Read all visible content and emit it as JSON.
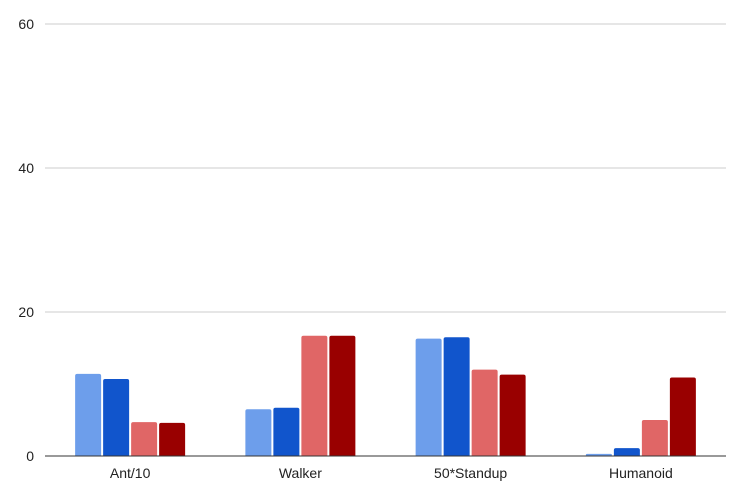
{
  "chart_data": {
    "type": "bar",
    "title": "",
    "xlabel": "",
    "ylabel": "",
    "categories": [
      "Ant/10",
      "Walker",
      "50*Standup",
      "Humanoid"
    ],
    "ylim": [
      0,
      60
    ],
    "yticks": [
      0,
      20,
      40,
      60
    ],
    "grid": true,
    "legend": "none",
    "series": [
      {
        "color": "#6d9eeb",
        "values": [
          11.4,
          6.5,
          16.3,
          0.3
        ]
      },
      {
        "color": "#1155cc",
        "values": [
          10.7,
          6.7,
          16.5,
          1.1
        ]
      },
      {
        "color": "#e06666",
        "values": [
          4.7,
          16.7,
          12.0,
          5.0
        ]
      },
      {
        "color": "#990000",
        "values": [
          4.6,
          16.7,
          11.3,
          10.9
        ]
      }
    ]
  }
}
